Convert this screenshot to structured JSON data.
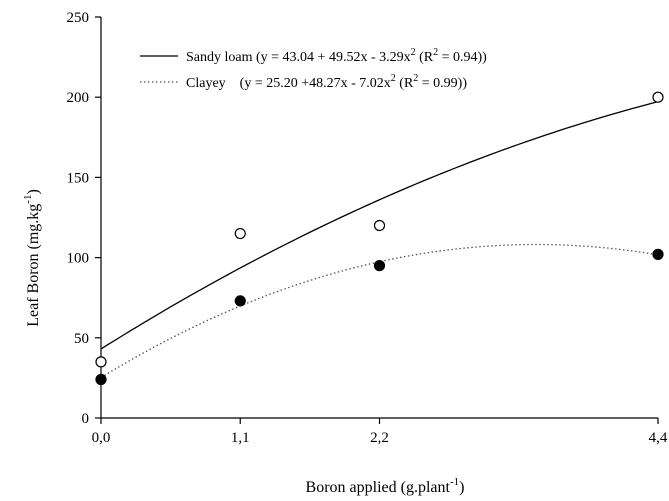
{
  "chart_data": {
    "type": "scatter",
    "xlabel_main": "Boron applied (g.plant",
    "xlabel_sup": "-1",
    "xlabel_end": ")",
    "ylabel_main": "Leaf Boron (mg.kg",
    "ylabel_sup": "-1",
    "ylabel_end": ")",
    "x": [
      0.0,
      1.1,
      2.2,
      4.4
    ],
    "x_tick_labels": [
      "0,0",
      "1,1",
      "2,2",
      "4,4"
    ],
    "xlim": [
      0.0,
      4.4
    ],
    "ylim": [
      0,
      250
    ],
    "y_ticks": [
      0,
      50,
      100,
      150,
      200,
      250
    ],
    "y_tick_labels": [
      "0",
      "50",
      "100",
      "150",
      "200",
      "250"
    ],
    "legend_position": "top-left",
    "series": [
      {
        "name": "Sandy loam",
        "marker": "open-circle",
        "line_style": "solid",
        "values": [
          35,
          115,
          120,
          200
        ],
        "fit_coefficients": [
          43.04,
          49.52,
          -3.29
        ],
        "legend_parts": [
          "Sandy loam (y = 43.04 + 49.52x - 3.29x",
          "2",
          " (R",
          "2",
          " = 0.94))"
        ]
      },
      {
        "name": "Clayey",
        "marker": "filled-circle",
        "line_style": "dotted",
        "values": [
          24,
          73,
          95,
          102
        ],
        "fit_coefficients": [
          25.2,
          48.27,
          -7.02
        ],
        "legend_parts": [
          "Clayey    (y = 25.20 +48.27x - 7.02x",
          "2",
          " (R",
          "2",
          " = 0.99))"
        ]
      }
    ]
  }
}
